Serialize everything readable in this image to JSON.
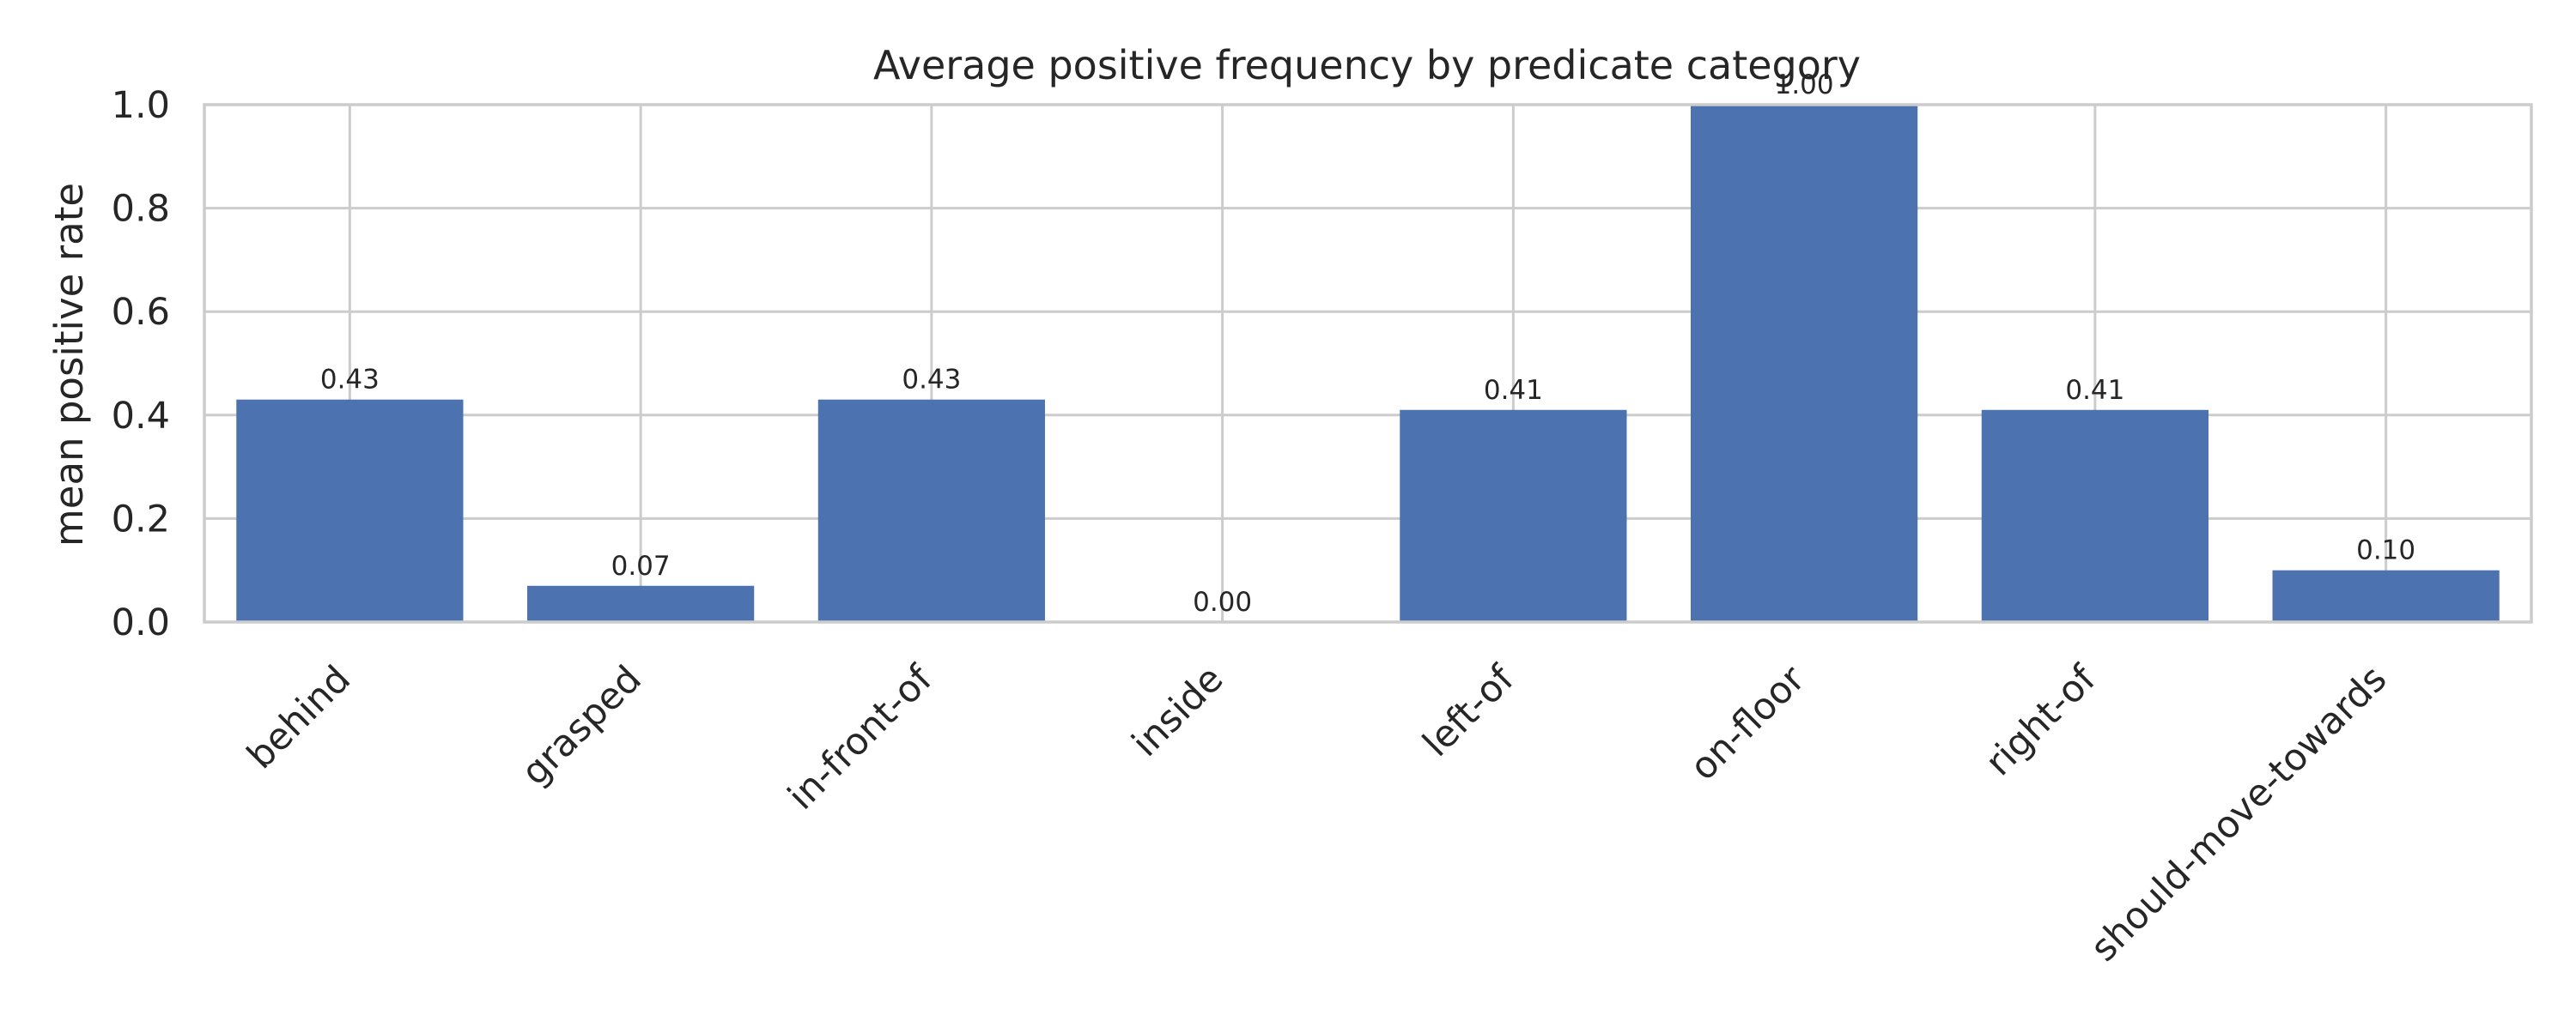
{
  "chart_data": {
    "type": "bar",
    "title": "Average positive frequency by predicate category",
    "xlabel": "",
    "ylabel": "mean positive rate",
    "categories": [
      "behind",
      "grasped",
      "in-front-of",
      "inside",
      "left-of",
      "on-floor",
      "right-of",
      "should-move-towards"
    ],
    "values": [
      0.43,
      0.07,
      0.43,
      0.0,
      0.41,
      1.0,
      0.41,
      0.1
    ],
    "data_labels": [
      "0.43",
      "0.07",
      "0.43",
      "0.00",
      "0.41",
      "1.00",
      "0.41",
      "0.10"
    ],
    "ylim": [
      0,
      1.0
    ],
    "yticks": [
      0.0,
      0.2,
      0.4,
      0.6,
      0.8,
      1.0
    ],
    "ytick_labels": [
      "0.0",
      "0.2",
      "0.4",
      "0.6",
      "0.8",
      "1.0"
    ],
    "grid": true,
    "bar_color": "#4c72b0",
    "grid_color": "#cccccc"
  }
}
